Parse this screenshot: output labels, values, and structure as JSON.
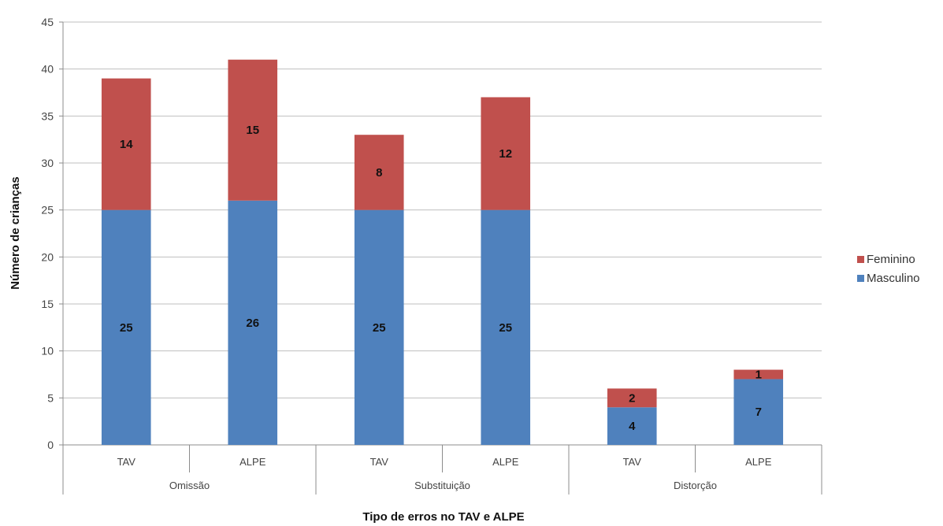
{
  "chart_data": {
    "type": "bar",
    "stacked": true,
    "categories": [
      "TAV",
      "ALPE",
      "TAV",
      "ALPE",
      "TAV",
      "ALPE"
    ],
    "groups": [
      {
        "label": "Omissão",
        "categories": [
          "TAV",
          "ALPE"
        ]
      },
      {
        "label": "Substituição",
        "categories": [
          "TAV",
          "ALPE"
        ]
      },
      {
        "label": "Distorção",
        "categories": [
          "TAV",
          "ALPE"
        ]
      }
    ],
    "series": [
      {
        "name": "Masculino",
        "color": "#4f81bd",
        "values": [
          25,
          26,
          25,
          25,
          4,
          7
        ]
      },
      {
        "name": "Feminino",
        "color": "#c0504d",
        "values": [
          14,
          15,
          8,
          12,
          2,
          1
        ]
      }
    ],
    "xlabel": "Tipo de erros no TAV e ALPE",
    "ylabel": "Número de crianças",
    "ylim": [
      0,
      45
    ],
    "yticks": [
      0,
      5,
      10,
      15,
      20,
      25,
      30,
      35,
      40,
      45
    ],
    "grid": true,
    "legend": "right"
  }
}
